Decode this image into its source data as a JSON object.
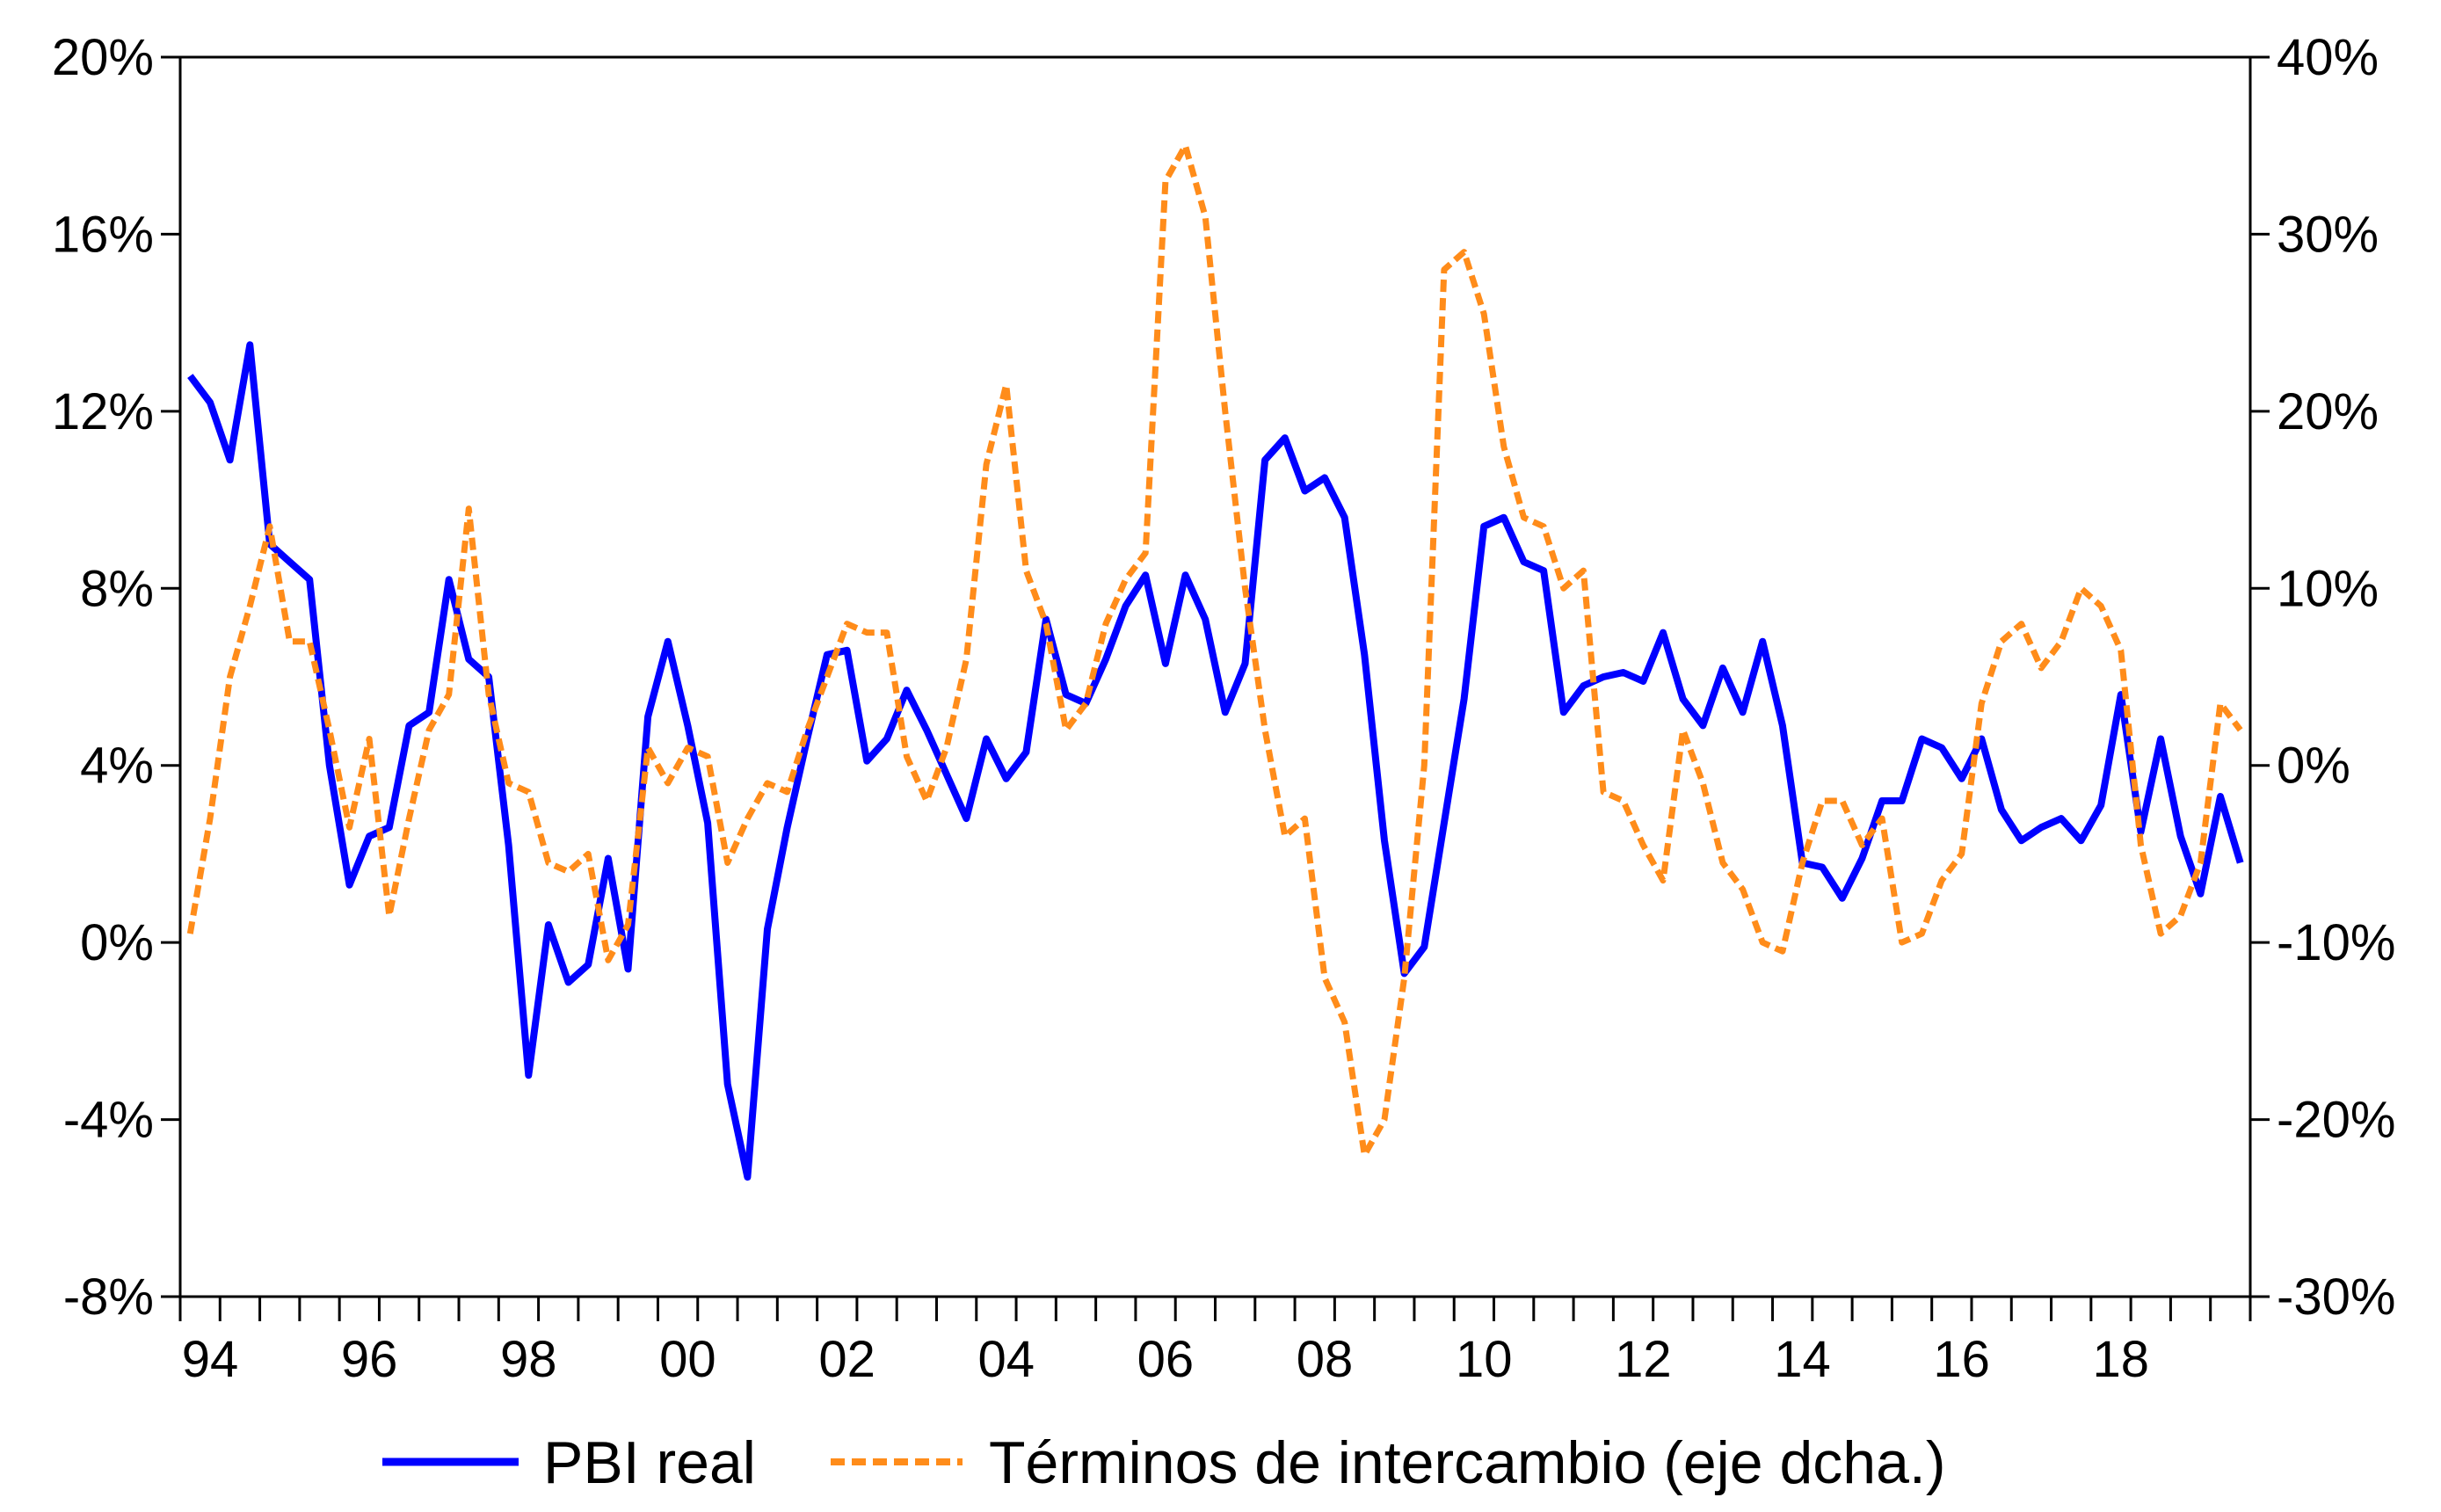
{
  "chart_data": {
    "type": "line",
    "title": "",
    "xlabel": "",
    "ylabel": "",
    "x_ticks": [
      "94",
      "96",
      "98",
      "00",
      "02",
      "04",
      "06",
      "08",
      "10",
      "12",
      "14",
      "16",
      "18"
    ],
    "y_left_ticks": [
      "20%",
      "16%",
      "12%",
      "8%",
      "4%",
      "0%",
      "-4%",
      "-8%"
    ],
    "y_right_ticks": [
      "40%",
      "30%",
      "20%",
      "10%",
      "0%",
      "-10%",
      "-20%",
      "-30%"
    ],
    "ylim_left": [
      -8,
      20
    ],
    "ylim_right": [
      -30,
      40
    ],
    "xlim": [
      1993.75,
      2019.75
    ],
    "legend_position": "bottom",
    "series": [
      {
        "name": "PBI real",
        "axis": "left",
        "color": "#0000ff",
        "style": "solid",
        "x": [
          1993.875,
          1994.125,
          1994.375,
          1994.625,
          1994.875,
          1995.125,
          1995.375,
          1995.625,
          1995.875,
          1996.125,
          1996.375,
          1996.625,
          1996.875,
          1997.125,
          1997.375,
          1997.625,
          1997.875,
          1998.125,
          1998.375,
          1998.625,
          1998.875,
          1999.125,
          1999.375,
          1999.625,
          1999.875,
          2000.125,
          2000.375,
          2000.625,
          2000.875,
          2001.125,
          2001.375,
          2001.625,
          2001.875,
          2002.125,
          2002.375,
          2002.625,
          2002.875,
          2003.125,
          2003.375,
          2003.625,
          2003.875,
          2004.125,
          2004.375,
          2004.625,
          2004.875,
          2005.125,
          2005.375,
          2005.625,
          2005.875,
          2006.125,
          2006.375,
          2006.625,
          2006.875,
          2007.125,
          2007.375,
          2007.625,
          2007.875,
          2008.125,
          2008.375,
          2008.625,
          2008.875,
          2009.125,
          2009.375,
          2009.625,
          2009.875,
          2010.125,
          2010.375,
          2010.625,
          2010.875,
          2011.125,
          2011.375,
          2011.625,
          2011.875,
          2012.125,
          2012.375,
          2012.625,
          2012.875,
          2013.125,
          2013.375,
          2013.625,
          2013.875,
          2014.125,
          2014.375,
          2014.625,
          2014.875,
          2015.125,
          2015.375,
          2015.625,
          2015.875,
          2016.125,
          2016.375,
          2016.625,
          2016.875,
          2017.125,
          2017.375,
          2017.625,
          2017.875,
          2018.125,
          2018.375,
          2018.625,
          2018.875,
          2019.125,
          2019.375,
          2019.625
        ],
        "values": [
          12.8,
          12.2,
          10.9,
          13.5,
          9.0,
          8.6,
          8.2,
          4.0,
          1.3,
          2.4,
          2.6,
          4.9,
          5.2,
          8.2,
          6.4,
          6.0,
          2.2,
          -3.0,
          0.4,
          -0.9,
          -0.5,
          1.9,
          -0.6,
          5.1,
          6.8,
          4.9,
          2.7,
          -3.2,
          -5.3,
          0.3,
          2.6,
          4.6,
          6.5,
          6.6,
          4.1,
          4.6,
          5.7,
          4.8,
          3.8,
          2.8,
          4.6,
          3.7,
          4.3,
          7.3,
          5.6,
          5.4,
          6.4,
          7.6,
          8.3,
          6.3,
          8.3,
          7.3,
          5.2,
          6.3,
          10.9,
          11.4,
          10.2,
          10.5,
          9.6,
          6.5,
          2.3,
          -0.7,
          -0.1,
          2.7,
          5.5,
          9.4,
          9.6,
          8.6,
          8.4,
          5.2,
          5.8,
          6.0,
          6.1,
          5.9,
          7.0,
          5.5,
          4.9,
          6.2,
          5.2,
          6.8,
          4.9,
          1.8,
          1.7,
          1.0,
          1.9,
          3.2,
          3.2,
          4.6,
          4.4,
          3.7,
          4.6,
          3.0,
          2.3,
          2.6,
          2.8,
          2.3,
          3.1,
          5.6,
          2.5,
          4.6,
          2.4,
          1.1,
          3.3,
          1.8
        ]
      },
      {
        "name": "Términos de intercambio (eje dcha.)",
        "axis": "right",
        "color": "#ff8c1a",
        "style": "dashed",
        "x": [
          1993.875,
          1994.125,
          1994.375,
          1994.625,
          1994.875,
          1995.125,
          1995.375,
          1995.625,
          1995.875,
          1996.125,
          1996.375,
          1996.625,
          1996.875,
          1997.125,
          1997.375,
          1997.625,
          1997.875,
          1998.125,
          1998.375,
          1998.625,
          1998.875,
          1999.125,
          1999.375,
          1999.625,
          1999.875,
          2000.125,
          2000.375,
          2000.625,
          2000.875,
          2001.125,
          2001.375,
          2001.625,
          2001.875,
          2002.125,
          2002.375,
          2002.625,
          2002.875,
          2003.125,
          2003.375,
          2003.625,
          2003.875,
          2004.125,
          2004.375,
          2004.625,
          2004.875,
          2005.125,
          2005.375,
          2005.625,
          2005.875,
          2006.125,
          2006.375,
          2006.625,
          2006.875,
          2007.125,
          2007.375,
          2007.625,
          2007.875,
          2008.125,
          2008.375,
          2008.625,
          2008.875,
          2009.125,
          2009.375,
          2009.625,
          2009.875,
          2010.125,
          2010.375,
          2010.625,
          2010.875,
          2011.125,
          2011.375,
          2011.625,
          2011.875,
          2012.125,
          2012.375,
          2012.625,
          2012.875,
          2013.125,
          2013.375,
          2013.625,
          2013.875,
          2014.125,
          2014.375,
          2014.625,
          2014.875,
          2015.125,
          2015.375,
          2015.625,
          2015.875,
          2016.125,
          2016.375,
          2016.625,
          2016.875,
          2017.125,
          2017.375,
          2017.625,
          2017.875,
          2018.125,
          2018.375,
          2018.625,
          2018.875,
          2019.125,
          2019.375,
          2019.625
        ],
        "values": [
          -9.5,
          -3.0,
          5.0,
          9.0,
          13.5,
          7.0,
          7.0,
          2.0,
          -3.5,
          1.5,
          -8.5,
          -3.0,
          2.0,
          4.0,
          14.5,
          4.0,
          -1.0,
          -1.5,
          -5.5,
          -6.0,
          -5.0,
          -11.0,
          -9.0,
          1.0,
          -1.0,
          1.0,
          0.5,
          -5.5,
          -3.0,
          -1.0,
          -1.5,
          2.0,
          5.0,
          8.0,
          7.5,
          7.5,
          0.5,
          -2.0,
          1.0,
          6.0,
          17.0,
          21.5,
          11.0,
          8.0,
          2.0,
          3.5,
          8.0,
          10.5,
          12.0,
          33.0,
          35.0,
          31.0,
          20.0,
          10.0,
          2.0,
          -4.0,
          -3.0,
          -12.0,
          -14.5,
          -22.0,
          -20.0,
          -12.0,
          0.0,
          28.0,
          29.0,
          25.5,
          18.0,
          14.0,
          13.5,
          10.0,
          11.0,
          -1.5,
          -2.0,
          -4.5,
          -6.5,
          2.0,
          -1.0,
          -5.5,
          -7.0,
          -10.0,
          -10.5,
          -5.5,
          -2.0,
          -2.0,
          -4.5,
          -3.0,
          -10.0,
          -9.5,
          -6.5,
          -5.0,
          3.5,
          7.0,
          8.0,
          5.5,
          7.0,
          10.0,
          9.0,
          6.5,
          -4.5,
          -9.5,
          -8.5,
          -5.5,
          3.5,
          2.0
        ]
      }
    ]
  }
}
